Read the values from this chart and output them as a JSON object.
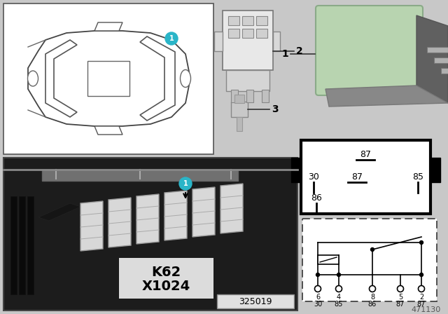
{
  "bg_color": "#c8c8c8",
  "white": "#ffffff",
  "black": "#000000",
  "cyan": "#2ab5c8",
  "green_relay": "#b8d4b0",
  "part_number": "471130",
  "ref_number": "325019",
  "label1": "1",
  "label2": "2",
  "label3": "3",
  "k62": "K62",
  "x1024": "X1024",
  "pin_top": [
    "6",
    "4",
    "8",
    "5",
    "2"
  ],
  "pin_bot": [
    "30",
    "85",
    "86",
    "87",
    "87"
  ]
}
